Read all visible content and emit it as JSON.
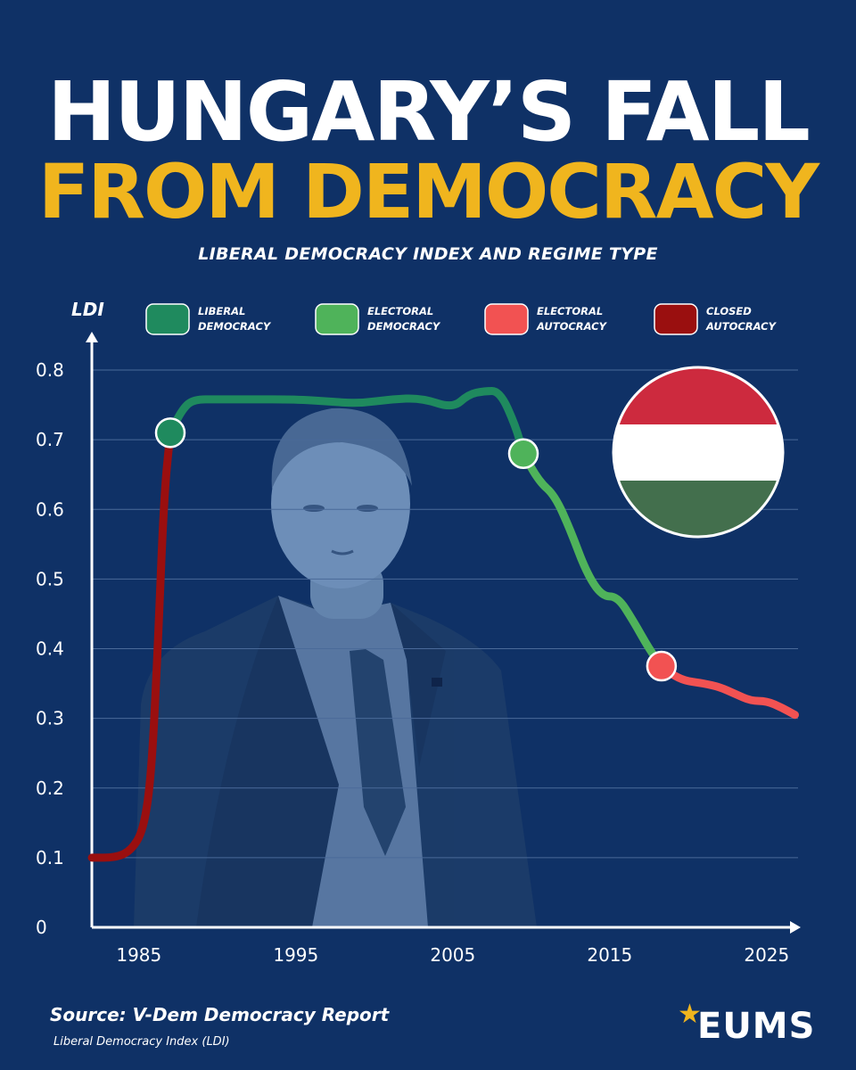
{
  "header": {
    "title_line_1": "HUNGARY’S FALL",
    "title_line_2": "FROM DEMOCRACY",
    "subtitle": "LIBERAL DEMOCRACY INDEX AND REGIME TYPE"
  },
  "footer": {
    "source": "Source: V-Dem Democracy Report",
    "note": "Liberal Democracy Index (LDI)",
    "logo_text": "EUMS",
    "logo_star": "★"
  },
  "colors": {
    "background": "#0f3166",
    "liberal_democracy": "#1f8a5e",
    "electoral_democracy": "#4fb35a",
    "electoral_autocracy": "#f25252",
    "closed_autocracy": "#9a0f0f",
    "accent": "#f0b51e",
    "flag_red": "#cd2a3e",
    "flag_white": "#ffffff",
    "flag_green": "#436f4d"
  },
  "images": {
    "portrait": "man-in-suit-portrait",
    "flag": "hungary-flag-icon"
  },
  "chart_data": {
    "type": "line",
    "title": "LIBERAL DEMOCRACY INDEX AND REGIME TYPE",
    "ylabel": "LDI",
    "xlabel": "",
    "xlim": [
      1982,
      2027
    ],
    "ylim": [
      0,
      0.8
    ],
    "x_ticks": [
      1985,
      1995,
      2005,
      2015,
      2025
    ],
    "y_ticks": [
      0,
      0.1,
      0.2,
      0.3,
      0.4,
      0.5,
      0.6,
      0.7,
      0.8
    ],
    "y_tick_labels": [
      "0",
      "0.1",
      "0.2",
      "0.3",
      "0.4",
      "0.5",
      "0.6",
      "0.7",
      "0.8"
    ],
    "grid": "horizontal",
    "legend_position": "top",
    "legend": [
      {
        "label_1": "LIBERAL",
        "label_2": "DEMOCRACY",
        "color": "#1f8a5e"
      },
      {
        "label_1": "ELECTORAL",
        "label_2": "DEMOCRACY",
        "color": "#4fb35a"
      },
      {
        "label_1": "ELECTORAL",
        "label_2": "AUTOCRACY",
        "color": "#f25252"
      },
      {
        "label_1": "CLOSED",
        "label_2": "AUTOCRACY",
        "color": "#9a0f0f"
      }
    ],
    "series": [
      {
        "regime": "closed_autocracy",
        "color": "#9a0f0f",
        "points": [
          [
            1982,
            0.1
          ],
          [
            1983.5,
            0.1
          ],
          [
            1984.5,
            0.11
          ],
          [
            1985.3,
            0.14
          ],
          [
            1985.8,
            0.22
          ],
          [
            1986.2,
            0.4
          ],
          [
            1986.6,
            0.62
          ],
          [
            1987,
            0.71
          ]
        ]
      },
      {
        "regime": "liberal_democracy",
        "color": "#1f8a5e",
        "points": [
          [
            1987,
            0.71
          ],
          [
            1987.8,
            0.745
          ],
          [
            1988.5,
            0.758
          ],
          [
            1990,
            0.758
          ],
          [
            1992,
            0.758
          ],
          [
            1995,
            0.758
          ],
          [
            1997,
            0.755
          ],
          [
            1999,
            0.752
          ],
          [
            2001,
            0.758
          ],
          [
            2003,
            0.76
          ],
          [
            2005,
            0.745
          ],
          [
            2006,
            0.765
          ],
          [
            2007,
            0.77
          ],
          [
            2008,
            0.77
          ],
          [
            2009,
            0.72
          ],
          [
            2009.5,
            0.68
          ]
        ]
      },
      {
        "regime": "electoral_democracy",
        "color": "#4fb35a",
        "points": [
          [
            2009.5,
            0.68
          ],
          [
            2010.5,
            0.64
          ],
          [
            2011.5,
            0.62
          ],
          [
            2012.5,
            0.57
          ],
          [
            2013.5,
            0.51
          ],
          [
            2014.5,
            0.475
          ],
          [
            2015.5,
            0.475
          ],
          [
            2016.5,
            0.44
          ],
          [
            2017.5,
            0.4
          ],
          [
            2018.3,
            0.375
          ]
        ]
      },
      {
        "regime": "electoral_autocracy",
        "color": "#f25252",
        "points": [
          [
            2018.3,
            0.375
          ],
          [
            2019.5,
            0.355
          ],
          [
            2021,
            0.35
          ],
          [
            2022,
            0.345
          ],
          [
            2023,
            0.335
          ],
          [
            2024,
            0.325
          ],
          [
            2025,
            0.325
          ],
          [
            2026,
            0.315
          ],
          [
            2026.8,
            0.305
          ]
        ]
      }
    ],
    "transition_markers": [
      {
        "x": 1987,
        "y": 0.71,
        "regime": "liberal_democracy",
        "color": "#1f8a5e"
      },
      {
        "x": 2009.5,
        "y": 0.68,
        "regime": "electoral_democracy",
        "color": "#4fb35a"
      },
      {
        "x": 2018.3,
        "y": 0.375,
        "regime": "electoral_autocracy",
        "color": "#f25252"
      }
    ]
  }
}
